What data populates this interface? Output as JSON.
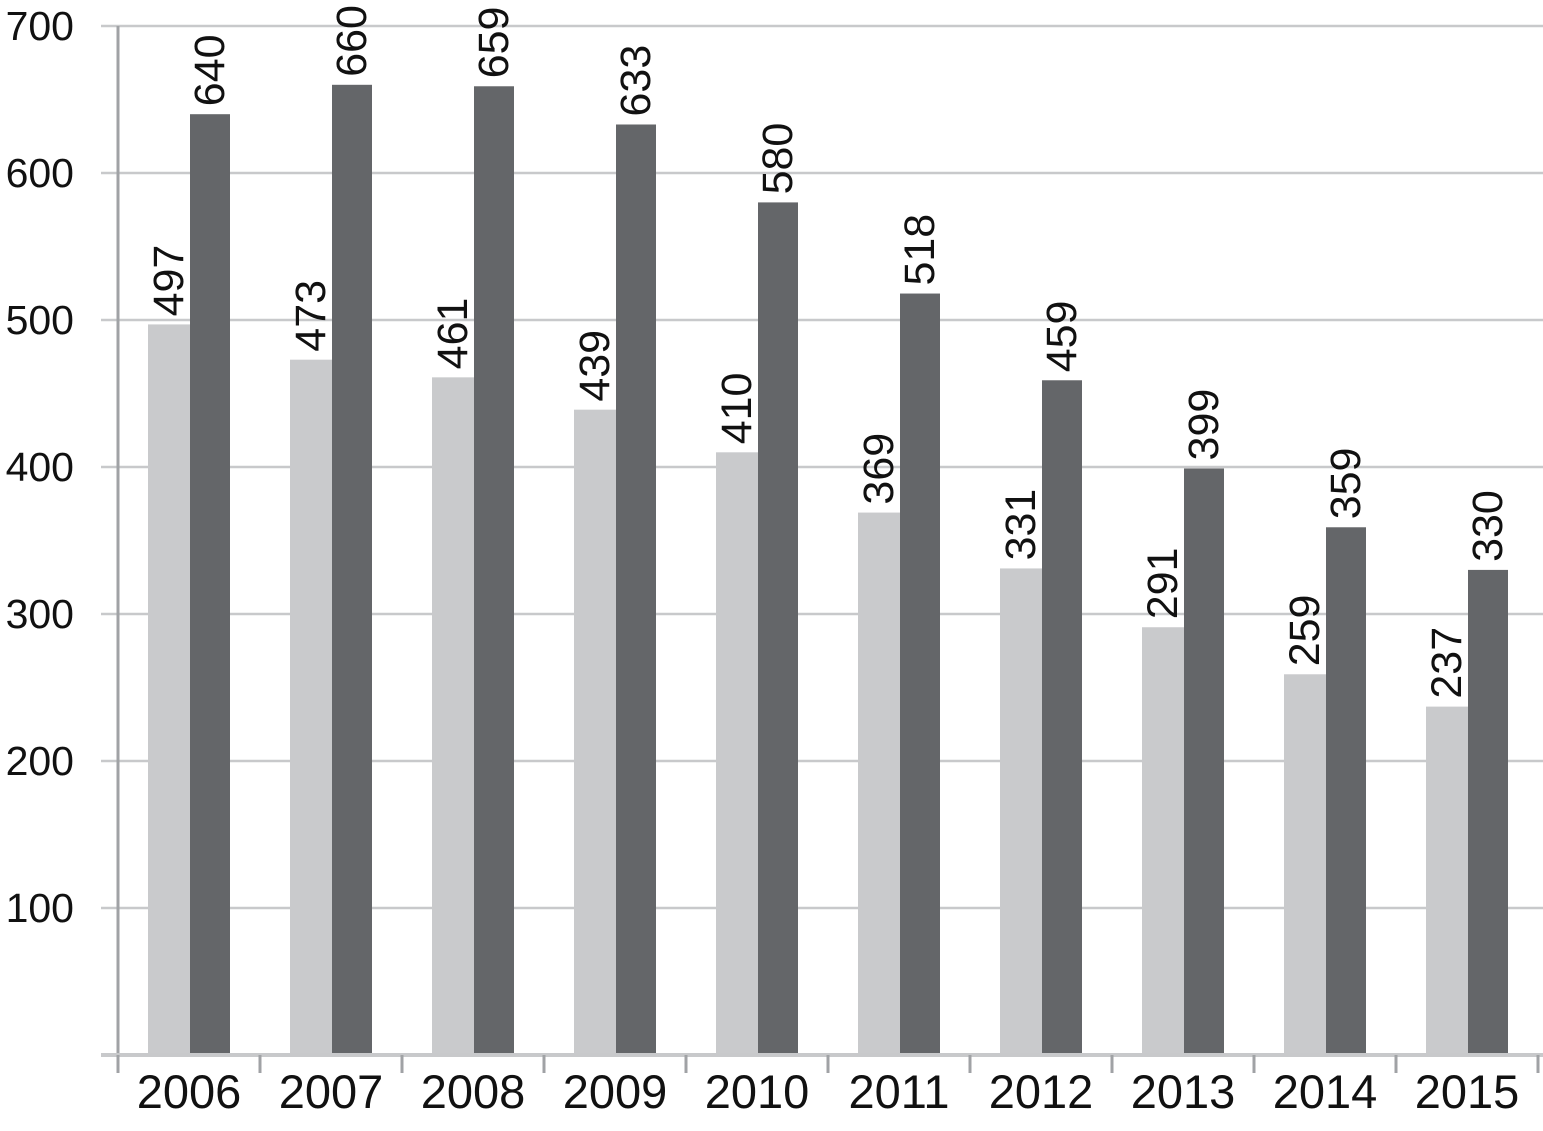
{
  "chart_data": {
    "type": "bar",
    "title": "",
    "xlabel": "",
    "ylabel": "",
    "categories": [
      "2006",
      "2007",
      "2008",
      "2009",
      "2010",
      "2011",
      "2012",
      "2013",
      "2014",
      "2015"
    ],
    "series": [
      {
        "name": "light-gray-series",
        "color": "#c9cacc",
        "values": [
          497,
          473,
          461,
          439,
          410,
          369,
          331,
          291,
          259,
          237
        ]
      },
      {
        "name": "dark-gray-series",
        "color": "#646669",
        "values": [
          640,
          660,
          659,
          633,
          580,
          518,
          459,
          399,
          359,
          330
        ]
      }
    ],
    "ylim": [
      0,
      700
    ],
    "yticks": [
      100,
      200,
      300,
      400,
      500,
      600,
      700
    ],
    "grid": true,
    "legend_position": "none",
    "value_labels_rotation_deg": -90,
    "colors": {
      "gridline": "#c8c9cb",
      "axis": "#a0a2a5",
      "label_text": "#111111",
      "background": "#ffffff"
    }
  }
}
